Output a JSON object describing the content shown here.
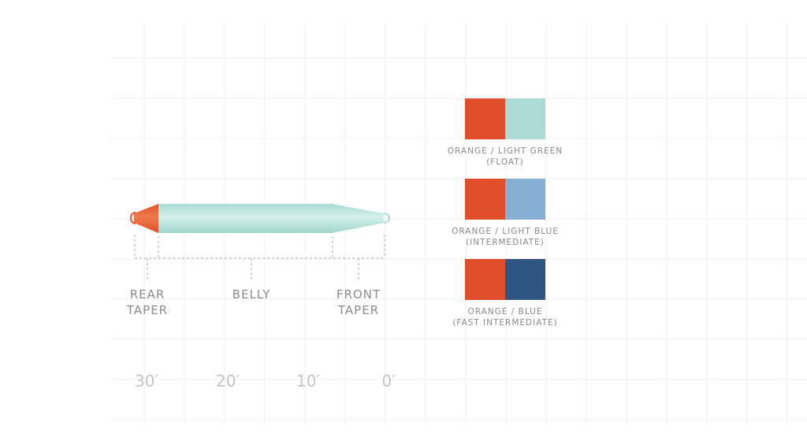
{
  "sections": {
    "rear_taper": "REAR\nTAPER",
    "belly": "BELLY",
    "front_taper": "FRONT\nTAPER"
  },
  "scale": [
    "30′",
    "20′",
    "10′",
    "0′"
  ],
  "colors": {
    "orange": "#e04e2b",
    "light_green": "#acdcd5",
    "light_blue": "#87aed3",
    "blue": "#2f5583",
    "line_body": "#bfe6df",
    "rear_taper": "#ea6a3c"
  },
  "swatches": [
    {
      "line1": "ORANGE / LIGHT GREEN",
      "line2": "(FLOAT)",
      "left": "#e04e2b",
      "right": "#acdcd5"
    },
    {
      "line1": "ORANGE / LIGHT BLUE",
      "line2": "(INTERMEDIATE)",
      "left": "#e04e2b",
      "right": "#87aed3"
    },
    {
      "line1": "ORANGE / BLUE",
      "line2": "(FAST INTERMEDIATE)",
      "left": "#e04e2b",
      "right": "#2f5583"
    }
  ]
}
